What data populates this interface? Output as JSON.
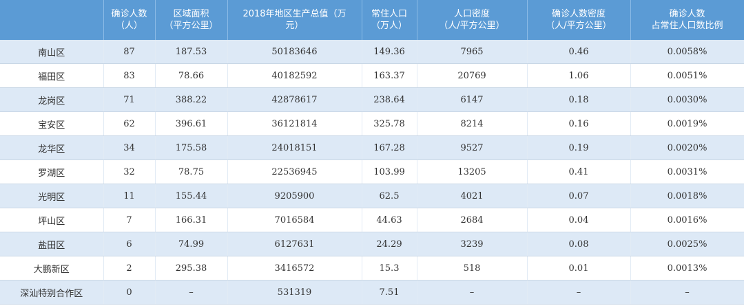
{
  "table": {
    "header": [
      "确诊人数\n（人）",
      "区域面积\n（平方公里）",
      "2018年地区生产总值（万\n元）",
      "常住人口\n（万人）",
      "人口密度\n（人/平方公里）",
      "确诊人数密度\n（人/平方公里）",
      "确诊人数\n占常住人口数比例"
    ],
    "rows": [
      [
        "南山区",
        "87",
        "187.53",
        "50183646",
        "149.36",
        "7965",
        "0.46",
        "0.0058%"
      ],
      [
        "福田区",
        "83",
        "78.66",
        "40182592",
        "163.37",
        "20769",
        "1.06",
        "0.0051%"
      ],
      [
        "龙岗区",
        "71",
        "388.22",
        "42878617",
        "238.64",
        "6147",
        "0.18",
        "0.0030%"
      ],
      [
        "宝安区",
        "62",
        "396.61",
        "36121814",
        "325.78",
        "8214",
        "0.16",
        "0.0019%"
      ],
      [
        "龙华区",
        "34",
        "175.58",
        "24018151",
        "167.28",
        "9527",
        "0.19",
        "0.0020%"
      ],
      [
        "罗湖区",
        "32",
        "78.75",
        "22536945",
        "103.99",
        "13205",
        "0.41",
        "0.0031%"
      ],
      [
        "光明区",
        "11",
        "155.44",
        "9205900",
        "62.5",
        "4021",
        "0.07",
        "0.0018%"
      ],
      [
        "坪山区",
        "7",
        "166.31",
        "7016584",
        "44.63",
        "2684",
        "0.04",
        "0.0016%"
      ],
      [
        "盐田区",
        "6",
        "74.99",
        "6127631",
        "24.29",
        "3239",
        "0.08",
        "0.0025%"
      ],
      [
        "大鹏新区",
        "2",
        "295.38",
        "3416572",
        "15.3",
        "518",
        "0.01",
        "0.0013%"
      ],
      [
        "深汕特别合作区",
        "0",
        "–",
        "531319",
        "7.51",
        "–",
        "–",
        "–"
      ]
    ]
  }
}
